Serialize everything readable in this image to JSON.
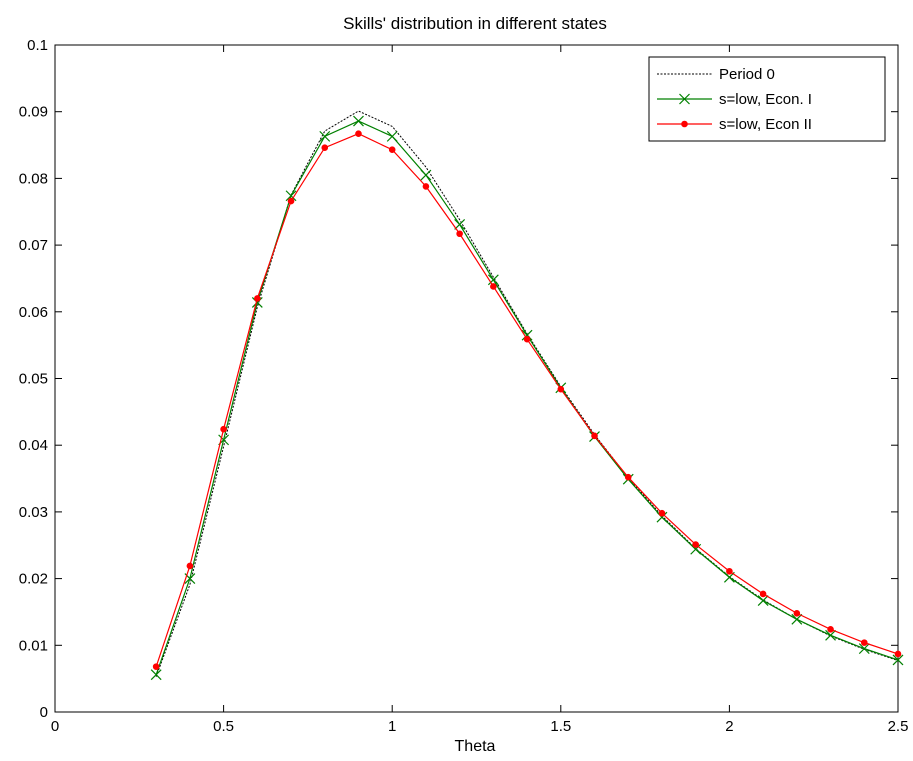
{
  "chart_data": {
    "type": "line",
    "title": "Skills' distribution in different states",
    "xlabel": "Theta",
    "ylabel": "",
    "xlim": [
      0,
      2.5
    ],
    "ylim": [
      0,
      0.1
    ],
    "xticks": [
      0,
      0.5,
      1,
      1.5,
      2,
      2.5
    ],
    "xtick_labels": [
      "0",
      "0.5",
      "1",
      "1.5",
      "2",
      "2.5"
    ],
    "yticks": [
      0,
      0.01,
      0.02,
      0.03,
      0.04,
      0.05,
      0.06,
      0.07,
      0.08,
      0.09,
      0.1
    ],
    "ytick_labels": [
      "0",
      "0.01",
      "0.02",
      "0.03",
      "0.04",
      "0.05",
      "0.06",
      "0.07",
      "0.08",
      "0.09",
      "0.1"
    ],
    "grid": false,
    "legend_position": "top-right",
    "x": [
      0.3,
      0.4,
      0.5,
      0.6,
      0.7,
      0.8,
      0.9,
      1.0,
      1.1,
      1.2,
      1.3,
      1.4,
      1.5,
      1.6,
      1.7,
      1.8,
      1.9,
      2.0,
      2.1,
      2.2,
      2.3,
      2.4,
      2.5
    ],
    "series": [
      {
        "name": "Period 0",
        "color": "#000000",
        "style": "dotted",
        "marker": "none",
        "values": [
          0.0053,
          0.0191,
          0.0398,
          0.0607,
          0.0775,
          0.0871,
          0.0901,
          0.0878,
          0.0817,
          0.0738,
          0.0652,
          0.0567,
          0.0488,
          0.0416,
          0.0351,
          0.0294,
          0.0245,
          0.0203,
          0.0168,
          0.0139,
          0.0114,
          0.0094,
          0.0077
        ]
      },
      {
        "name": "s=low, Econ. I",
        "color": "#008000",
        "style": "solid",
        "marker": "x",
        "values": [
          0.0056,
          0.02,
          0.0408,
          0.0614,
          0.0774,
          0.0863,
          0.0886,
          0.0863,
          0.0805,
          0.0731,
          0.0648,
          0.0565,
          0.0486,
          0.0413,
          0.0349,
          0.0292,
          0.0244,
          0.0202,
          0.0167,
          0.0139,
          0.0115,
          0.0095,
          0.0078
        ]
      },
      {
        "name": "s=low, Econ  II",
        "color": "#ff0000",
        "style": "solid",
        "marker": "dot",
        "values": [
          0.0068,
          0.0219,
          0.0424,
          0.062,
          0.0766,
          0.0846,
          0.0867,
          0.0843,
          0.0788,
          0.0717,
          0.0638,
          0.0559,
          0.0484,
          0.0414,
          0.0352,
          0.0298,
          0.0251,
          0.0211,
          0.0177,
          0.0148,
          0.0124,
          0.0104,
          0.0087
        ]
      }
    ]
  }
}
